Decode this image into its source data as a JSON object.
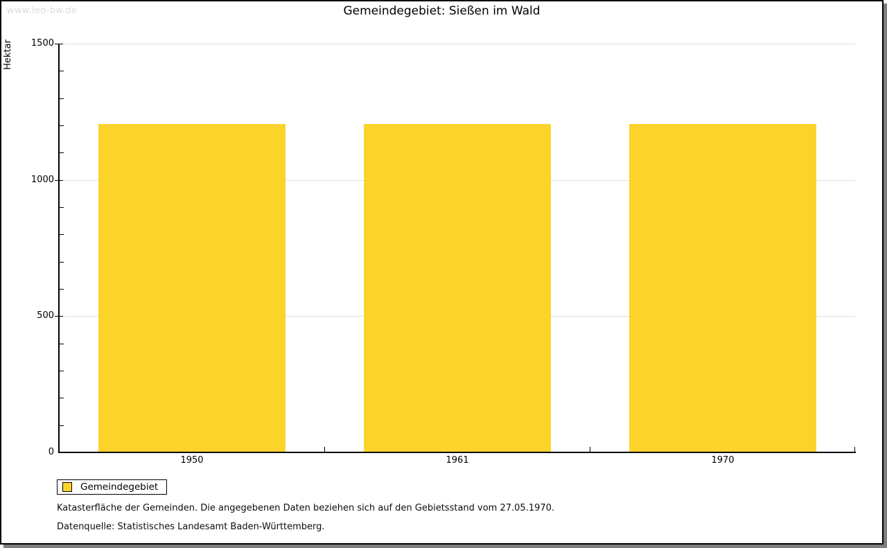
{
  "watermark": "www.leo-bw.de",
  "title": "Gemeindegebiet: Sießen im Wald",
  "legend": {
    "label": "Gemeindegebiet",
    "swatch_color": "#fcd32b"
  },
  "footnotes": [
    "Katasterfläche der Gemeinden. Die angegebenen Daten beziehen sich auf den Gebietsstand vom 27.05.1970.",
    "Datenquelle: Statistisches Landesamt Baden-Württemberg."
  ],
  "chart_data": {
    "type": "bar",
    "title": "Gemeindegebiet: Sießen im Wald",
    "categories": [
      "1950",
      "1961",
      "1970"
    ],
    "series": [
      {
        "name": "Gemeindegebiet",
        "values": [
          1205,
          1205,
          1205
        ],
        "color": "#fcd32b"
      }
    ],
    "xlabel": "",
    "ylabel": "Hektar",
    "ylim": [
      0,
      1500
    ],
    "y_major_ticks": [
      0,
      500,
      1000,
      1500
    ],
    "y_minor_step": 100,
    "grid": true,
    "gridline_color": "#dfdfdf",
    "legend_position": "bottom-left"
  }
}
